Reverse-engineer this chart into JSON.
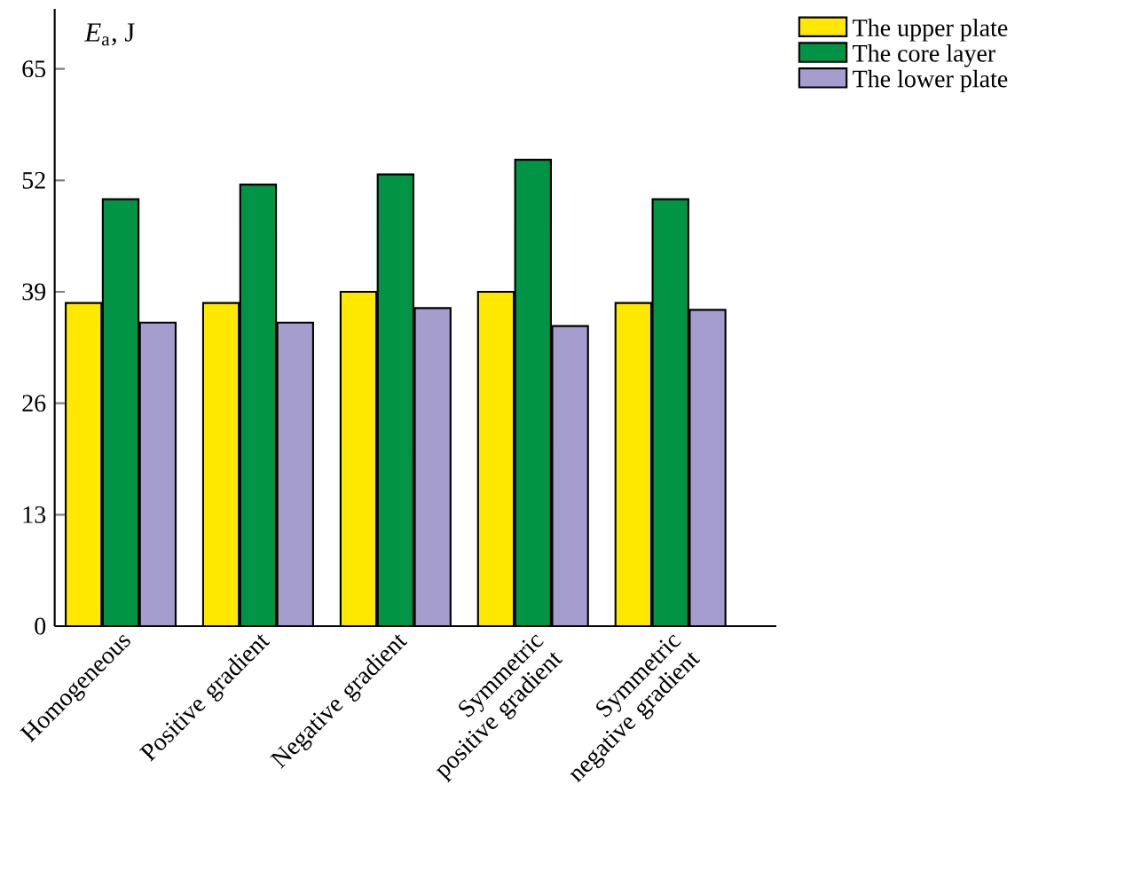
{
  "chart_data": {
    "type": "bar",
    "ylabel": "*E*$_{a}$, J",
    "categories": [
      "Homogeneous",
      "Positive gradient",
      "Negative gradient",
      "Symmetric positive gradient",
      "Symmetric negative gradient"
    ],
    "series": [
      {
        "name": "The upper plate",
        "color": "#ffe800",
        "values": [
          37.7,
          37.7,
          39,
          39,
          37.7
        ]
      },
      {
        "name": "The core layer",
        "color": "#009444",
        "values": [
          49.8,
          51.5,
          52.7,
          54.4,
          49.8
        ]
      },
      {
        "name": "The lower plate",
        "color": "#a59dcd",
        "values": [
          35.4,
          35.4,
          37.1,
          35,
          36.9
        ]
      }
    ],
    "ylim": [
      0,
      72
    ],
    "yticks": [
      0,
      13,
      26,
      39,
      52,
      65
    ],
    "legend": "top right",
    "grid": false
  }
}
